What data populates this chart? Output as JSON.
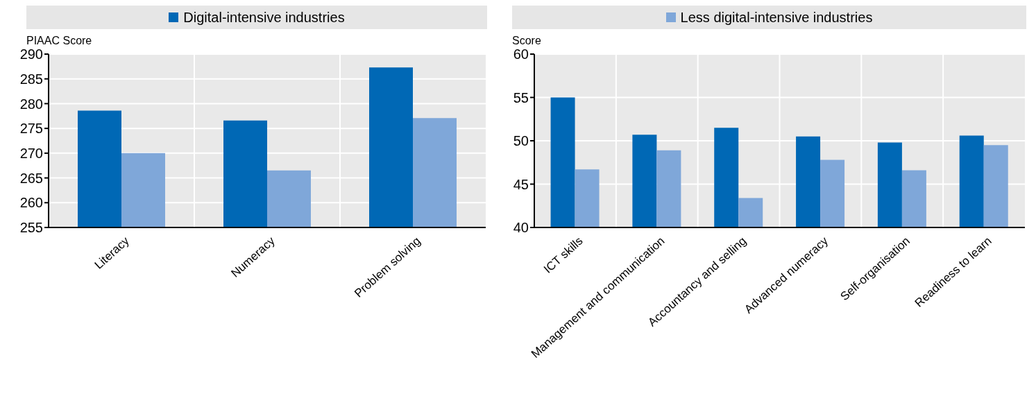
{
  "chart_data": [
    {
      "type": "bar",
      "ylabel": "PIAAC Score",
      "categories": [
        "Literacy",
        "Numeracy",
        "Problem solving"
      ],
      "series": [
        {
          "name": "Digital-intensive industries",
          "color": "#0068b5",
          "values": [
            278.6,
            276.6,
            287.3
          ]
        },
        {
          "color": "#7fa7d9",
          "values": [
            270.0,
            266.5,
            277.1
          ]
        }
      ],
      "ylim": [
        255,
        290
      ],
      "yticks": [
        255,
        260,
        265,
        270,
        275,
        280,
        285,
        290
      ],
      "grid": true,
      "legend": "top"
    },
    {
      "type": "bar",
      "ylabel": "Score",
      "categories": [
        "ICT skills",
        "Management and communication",
        "Accountancy and selling",
        "Advanced numeracy",
        "Self-organisation",
        "Readiness to learn"
      ],
      "series": [
        {
          "color": "#0068b5",
          "values": [
            55.0,
            50.7,
            51.5,
            50.5,
            49.8,
            50.6
          ]
        },
        {
          "name": "Less digital-intensive industries",
          "color": "#7fa7d9",
          "values": [
            46.7,
            48.9,
            43.4,
            47.8,
            46.6,
            49.5
          ]
        }
      ],
      "ylim": [
        40,
        60
      ],
      "yticks": [
        40,
        45,
        50,
        55,
        60
      ],
      "grid": true,
      "legend": "top"
    }
  ]
}
